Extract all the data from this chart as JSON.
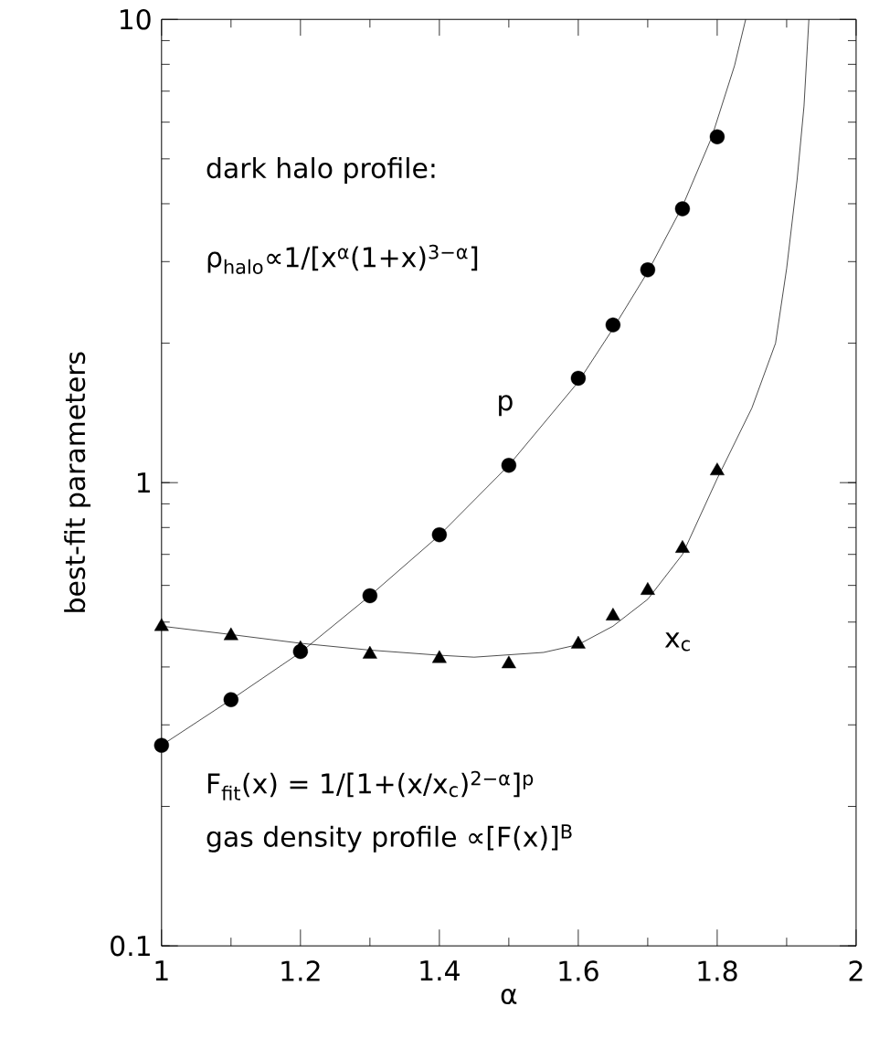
{
  "chart_data": {
    "type": "scatter",
    "xlabel": "α",
    "ylabel": "best-fit parameters",
    "log": "y",
    "xlim": [
      1,
      2
    ],
    "ylim": [
      0.1,
      10
    ],
    "xticks": [
      1,
      1.2,
      1.4,
      1.6,
      1.8,
      2
    ],
    "yticks": [
      0.1,
      1,
      10
    ],
    "grid": false,
    "legend": false,
    "series": [
      {
        "name": "p",
        "marker": "circle",
        "color": "#000000",
        "x": [
          1.0,
          1.1,
          1.2,
          1.3,
          1.4,
          1.5,
          1.6,
          1.65,
          1.7,
          1.75,
          1.8
        ],
        "values": [
          0.271,
          0.34,
          0.432,
          0.57,
          0.772,
          1.09,
          1.68,
          2.19,
          2.88,
          3.9,
          5.58
        ]
      },
      {
        "name": "x$_{c}$",
        "marker": "triangle",
        "color": "#000000",
        "x": [
          1.0,
          1.1,
          1.2,
          1.3,
          1.4,
          1.5,
          1.6,
          1.65,
          1.7,
          1.75,
          1.8
        ],
        "values": [
          0.489,
          0.467,
          0.438,
          0.426,
          0.417,
          0.406,
          0.448,
          0.515,
          0.585,
          0.721,
          1.06
        ]
      },
      {
        "type": "line",
        "marker": "none",
        "line_style": "solid",
        "color": "#000000",
        "x": [
          1.0,
          1.1,
          1.2,
          1.3,
          1.4,
          1.5,
          1.6,
          1.65,
          1.7,
          1.75,
          1.792,
          1.825,
          1.841
        ],
        "values": [
          0.271,
          0.34,
          0.43,
          0.57,
          0.77,
          1.09,
          1.65,
          2.15,
          2.85,
          3.95,
          5.56,
          7.95,
          10
        ]
      },
      {
        "type": "line",
        "marker": "none",
        "line_style": "solid",
        "color": "#000000",
        "x": [
          1.0,
          1.1,
          1.2,
          1.3,
          1.4,
          1.45,
          1.55,
          1.6,
          1.65,
          1.7,
          1.75,
          1.8,
          1.85,
          1.884,
          1.9,
          1.915,
          1.925,
          1.932
        ],
        "values": [
          0.49,
          0.47,
          0.45,
          0.435,
          0.424,
          0.42,
          0.43,
          0.447,
          0.49,
          0.56,
          0.7,
          1.02,
          1.45,
          2.0,
          2.9,
          4.5,
          6.5,
          10
        ]
      }
    ],
    "annotations": [
      "dark halo profile:",
      "ρ$_{halo}$∝1/[x$^{α}$(1+x)$^{3−α}$]",
      "F$_{fit}$(x) = 1/[1+(x/x$_{c}$)$^{2−α}$]$^{p}$",
      "gas density profile ∝[F(x)]$^{B}$"
    ]
  }
}
